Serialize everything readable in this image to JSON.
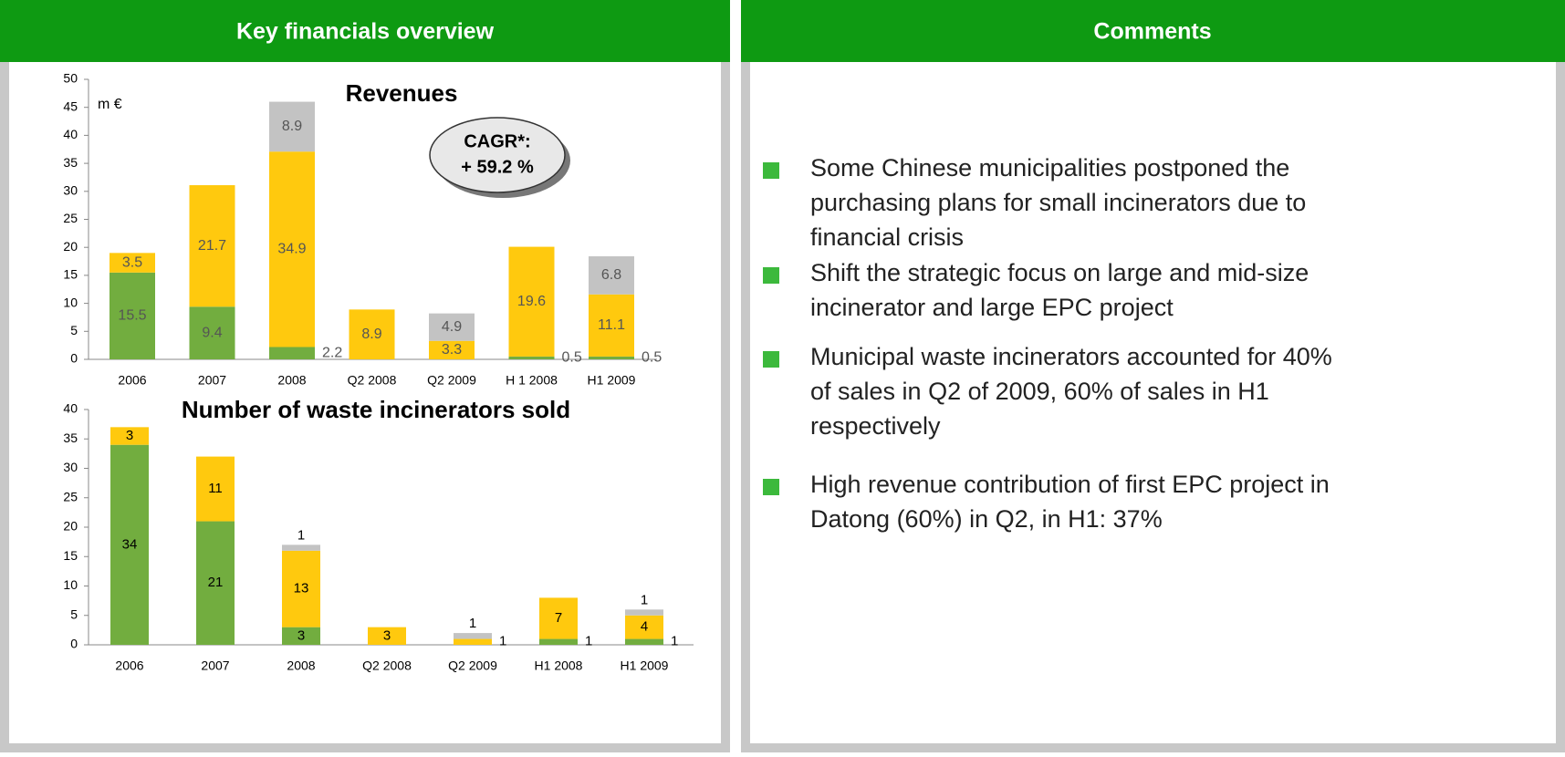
{
  "panels": [
    {
      "title": "Key financials overview"
    },
    {
      "title": "Comments"
    }
  ],
  "comments": [
    "Some Chinese municipalities postponed the purchasing plans for small incinerators due to financial crisis",
    "Shift the strategic focus on large and mid-size incinerator and large EPC project",
    "Municipal waste incinerators accounted for 40% of sales in Q2 of 2009, 60% of sales in H1 respectively",
    "High revenue contribution of first EPC project in Datong (60%) in Q2, in H1: 37%"
  ],
  "chart_data": [
    {
      "type": "stacked_bar",
      "title": "Revenues",
      "y_label": "m €",
      "annotation": [
        "CAGR*:",
        "+ 59.2 %"
      ],
      "categories": [
        "2006",
        "2007",
        "2008",
        "Q2 2008",
        "Q2 2009",
        "H 1 2008",
        "H1 2009"
      ],
      "series": [
        {
          "color": "#72ad3f",
          "values": [
            15.5,
            9.4,
            2.2,
            null,
            null,
            0.5,
            0.5
          ]
        },
        {
          "color": "#ffc90e",
          "values": [
            3.5,
            21.7,
            34.9,
            8.9,
            3.3,
            19.6,
            11.1
          ]
        },
        {
          "color": "#c3c3c3",
          "values": [
            null,
            null,
            8.9,
            null,
            4.9,
            null,
            6.8
          ]
        }
      ],
      "ylim": [
        0,
        50
      ],
      "yticks": [
        0,
        5,
        10,
        15,
        20,
        25,
        30,
        35,
        40,
        45,
        50
      ]
    },
    {
      "type": "stacked_bar",
      "title": "Number of waste incinerators sold",
      "categories": [
        "2006",
        "2007",
        "2008",
        "Q2 2008",
        "Q2 2009",
        "H1 2008",
        "H1 2009"
      ],
      "series": [
        {
          "color": "#72ad3f",
          "values": [
            34,
            21,
            3,
            null,
            null,
            1,
            1
          ]
        },
        {
          "color": "#ffc90e",
          "values": [
            3,
            11,
            13,
            3,
            1,
            7,
            4
          ]
        },
        {
          "color": "#c3c3c3",
          "values": [
            null,
            null,
            1,
            null,
            1,
            null,
            1
          ]
        }
      ],
      "ylim": [
        0,
        40
      ],
      "yticks": [
        0,
        5,
        10,
        15,
        20,
        25,
        30,
        35,
        40
      ]
    }
  ]
}
